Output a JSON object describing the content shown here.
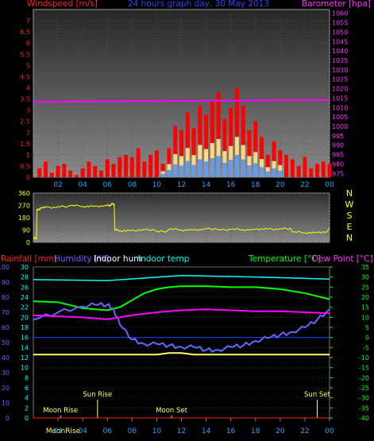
{
  "chart_data": [
    {
      "panel": "wind-baro",
      "type": "line",
      "title": "24 hours graph day, 30 May 2013",
      "left_label": "Windspeed [m/s]",
      "right_label": "Barometer [hpa]",
      "x_ticks": [
        "02",
        "04",
        "06",
        "08",
        "10",
        "12",
        "14",
        "16",
        "18",
        "20",
        "22",
        "00"
      ],
      "y_left_ticks": [
        "0",
        "0.5",
        "1",
        "1.5",
        "2",
        "2.5",
        "3",
        "3.5",
        "4",
        "4.5",
        "5",
        "5.5",
        "6",
        "6.5",
        "7"
      ],
      "ylim_left": [
        0,
        7.5
      ],
      "y_right_ticks": [
        "975",
        "980",
        "985",
        "990",
        "995",
        "1000",
        "1005",
        "1010",
        "1015",
        "1020",
        "1025",
        "1030",
        "1035",
        "1040",
        "1045",
        "1050",
        "1055",
        "1060"
      ],
      "ylim_right": [
        973,
        1062
      ],
      "series": [
        {
          "name": "Windspeed",
          "color": "#ff0000",
          "hours": [
            0.5,
            1,
            1.5,
            2,
            2.5,
            3,
            3.5,
            4,
            4.5,
            5,
            5.5,
            6,
            6.5,
            7,
            7.5,
            8,
            8.5,
            9,
            9.5,
            10,
            10.5,
            11,
            11.5,
            12,
            12.5,
            13,
            13.5,
            14,
            14.5,
            15,
            15.5,
            16,
            16.5,
            17,
            17.5,
            18,
            18.5,
            19,
            19.5,
            20,
            20.5,
            21,
            21.5,
            22,
            22.5,
            23,
            23.5,
            24
          ],
          "values": [
            0.4,
            0.7,
            0.2,
            0.5,
            0.6,
            0.3,
            0.1,
            0.4,
            0.7,
            0.5,
            0.3,
            0.8,
            0.6,
            0.9,
            1.0,
            0.9,
            1.3,
            0.7,
            1.0,
            1.2,
            0.6,
            1.3,
            2.3,
            2.1,
            2.9,
            2.2,
            3.2,
            2.8,
            3.4,
            3.8,
            2.6,
            3.1,
            4.0,
            3.2,
            2.1,
            2.5,
            1.8,
            1.0,
            1.6,
            1.2,
            1.0,
            0.8,
            0.5,
            0.9,
            0.4,
            0.6,
            0.7,
            0.6
          ]
        },
        {
          "name": "Barometer",
          "color": "#ff00ff",
          "hours": [
            0,
            24
          ],
          "values": [
            1013,
            1014
          ]
        }
      ]
    },
    {
      "panel": "wind-direction",
      "type": "line",
      "y_ticks": [
        "0",
        "90",
        "180",
        "270",
        "360"
      ],
      "ylim": [
        0,
        360
      ],
      "direction_labels": [
        "N",
        "W",
        "S",
        "E",
        "N"
      ],
      "series": [
        {
          "name": "Wind direction",
          "color": "#ffff00",
          "hours": [
            0,
            0.3,
            0.6,
            1,
            2,
            3,
            4,
            5,
            6,
            6.3,
            6.6,
            7,
            8,
            9,
            10,
            11,
            12,
            13,
            14,
            15,
            16,
            17,
            18,
            19,
            20,
            21,
            22,
            23,
            24
          ],
          "values": [
            30,
            240,
            255,
            255,
            262,
            268,
            262,
            265,
            270,
            280,
            90,
            85,
            88,
            92,
            80,
            95,
            90,
            93,
            98,
            92,
            95,
            92,
            97,
            96,
            100,
            75,
            70,
            75,
            105
          ]
        }
      ]
    },
    {
      "panel": "temperature-humidity",
      "type": "line",
      "left_labels": [
        "Rainfall [mm]",
        "Humidity [%]",
        "Indoor hum",
        "Indoor temp"
      ],
      "right_labels": [
        "Temperature [°C]",
        "Dew Point [°C]"
      ],
      "y_left_rain_ticks": [
        "0",
        "10",
        "20",
        "30",
        "40",
        "50",
        "60",
        "70",
        "80",
        "90",
        "100"
      ],
      "y_left_temp_ticks": [
        "0",
        "2",
        "4",
        "6",
        "8",
        "10",
        "12",
        "14",
        "16",
        "18",
        "20",
        "22",
        "24",
        "26",
        "28",
        "30"
      ],
      "y_right_ticks": [
        "35",
        "30",
        "25",
        "20",
        "15",
        "10",
        "5",
        "0",
        "-5",
        "-10",
        "-15",
        "-20",
        "-25",
        "-30",
        "-35",
        "-40"
      ],
      "ylim_right": [
        -40,
        35
      ],
      "annotations": [
        {
          "text": "Sun Rise",
          "hour": 5.2
        },
        {
          "text": "Moon Rise",
          "hour": 2.2
        },
        {
          "text": "Moon Set",
          "hour": 11.2
        },
        {
          "text": "Sun Set",
          "hour": 23.0
        }
      ],
      "bottom_ticks": [
        "Moon",
        "02",
        "Rise",
        "04",
        "06",
        "08",
        "10",
        "12",
        "14",
        "16",
        "18",
        "20",
        "22",
        "00"
      ],
      "series": [
        {
          "name": "Indoor temp",
          "color": "#00ffff",
          "unit": "°C",
          "hours": [
            0,
            6,
            12,
            18,
            24
          ],
          "values": [
            27.5,
            27.3,
            28.3,
            28.0,
            27.6
          ]
        },
        {
          "name": "Temperature",
          "color": "#00ff00",
          "unit": "°C",
          "hours": [
            0,
            2,
            4,
            6,
            7,
            8,
            9,
            10,
            11,
            12,
            14,
            16,
            18,
            20,
            22,
            24
          ],
          "values": [
            18.0,
            17.5,
            14.5,
            13.5,
            15.0,
            18.5,
            22.0,
            24.0,
            25.0,
            25.5,
            25.5,
            25.0,
            25.0,
            24.0,
            22.0,
            19.0
          ]
        },
        {
          "name": "Humidity",
          "color": "#6666ff",
          "unit": "%",
          "hours": [
            0,
            2,
            4,
            5,
            6,
            6.5,
            7,
            8,
            9,
            10,
            11,
            12,
            13,
            14,
            15,
            16,
            17,
            18,
            19,
            20,
            21,
            22,
            23,
            24
          ],
          "values": [
            65,
            70,
            74,
            75,
            75,
            72,
            62,
            52,
            49,
            49,
            48,
            47,
            47,
            45,
            45,
            47,
            48,
            51,
            53,
            55,
            57,
            60,
            65,
            72
          ]
        },
        {
          "name": "Dew Point",
          "color": "#ff00ff",
          "unit": "°C",
          "hours": [
            0,
            2,
            4,
            6,
            8,
            10,
            12,
            14,
            16,
            18,
            20,
            22,
            24
          ],
          "values": [
            11.0,
            10.5,
            10.0,
            9.0,
            11.0,
            12.5,
            13.5,
            14.0,
            13.5,
            13.0,
            13.0,
            12.5,
            12.0
          ]
        },
        {
          "name": "Indoor hum",
          "color": "#ffff66",
          "unit": "%",
          "hours": [
            0,
            5,
            10,
            11,
            12,
            13,
            15,
            20,
            24
          ],
          "values": [
            42,
            42,
            42,
            43,
            43,
            42,
            42,
            42,
            42
          ]
        },
        {
          "name": "Rainfall",
          "color": "#ff2020",
          "unit": "mm",
          "hours": [
            0,
            24
          ],
          "values": [
            0,
            0
          ]
        }
      ]
    }
  ]
}
